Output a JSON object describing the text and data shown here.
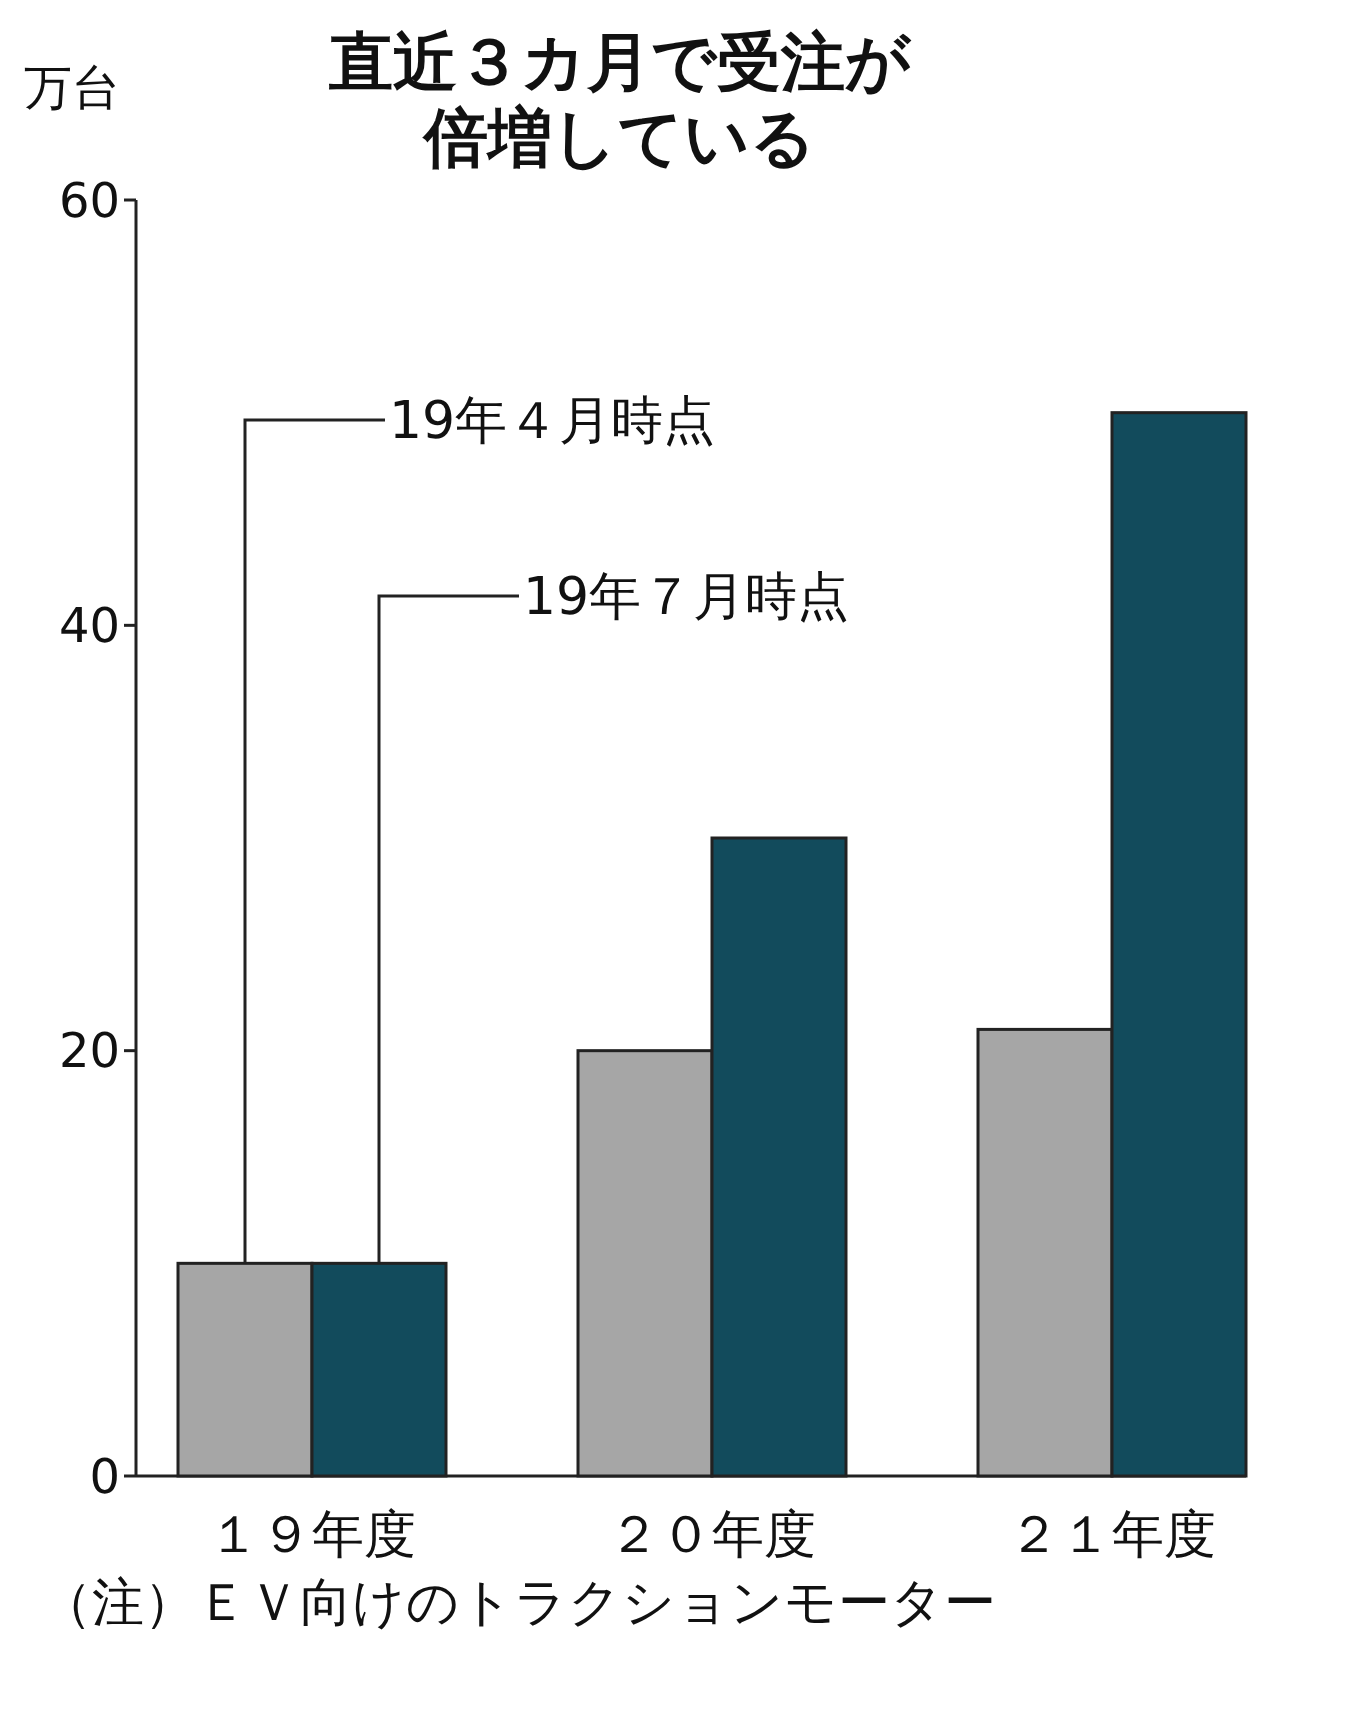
{
  "chart_data": {
    "type": "bar",
    "title": "直近３カ月で受注が倍増している",
    "ylabel": "万台",
    "categories": [
      "１９年度",
      "２０年度",
      "２１年度"
    ],
    "series": [
      {
        "name": "19年４月時点",
        "color": "#a6a6a6",
        "values": [
          10,
          20,
          21
        ]
      },
      {
        "name": "19年７月時点",
        "color": "#124b5c",
        "values": [
          10,
          30,
          50
        ]
      }
    ],
    "ylim": [
      0,
      60
    ],
    "yticks": [
      0,
      20,
      40,
      60
    ],
    "grid": false,
    "annotations": [
      "（注）ＥＶ向けのトラクションモーター"
    ]
  }
}
